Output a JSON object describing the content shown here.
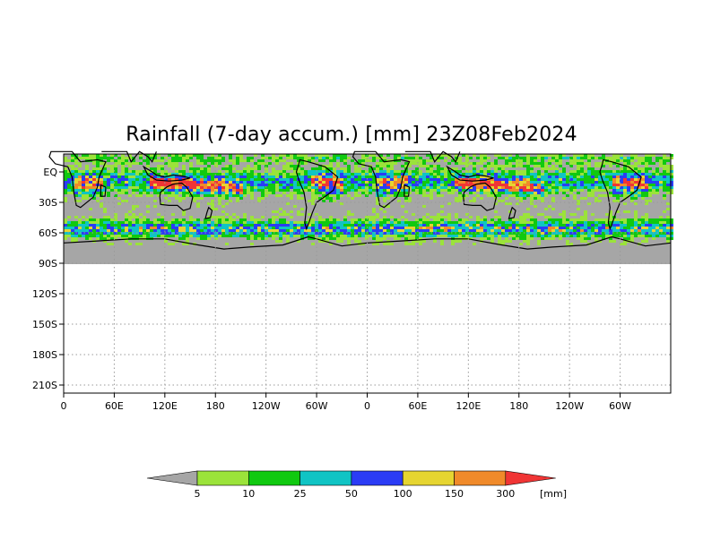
{
  "title": "Rainfall (7-day accum.) [mm] 23Z08Feb2024",
  "y_ticks": [
    "EQ",
    "30S",
    "60S",
    "90S",
    "120S",
    "150S",
    "180S",
    "210S"
  ],
  "x_ticks": [
    "0",
    "60E",
    "120E",
    "180",
    "120W",
    "60W",
    "0",
    "60E",
    "120E",
    "180",
    "120W",
    "60W"
  ],
  "colorbar": {
    "unit": "[mm]",
    "labels": [
      "5",
      "10",
      "25",
      "50",
      "100",
      "150",
      "300"
    ],
    "colors": [
      "#a6a6a6",
      "#9be33a",
      "#10c910",
      "#10c4c4",
      "#2b3cf5",
      "#e6d531",
      "#f08a2a",
      "#f03535"
    ]
  },
  "colors": {
    "no_rain": "#a6a6a6",
    "land_outline": "#000000",
    "grid": "#bdbdbd"
  }
}
